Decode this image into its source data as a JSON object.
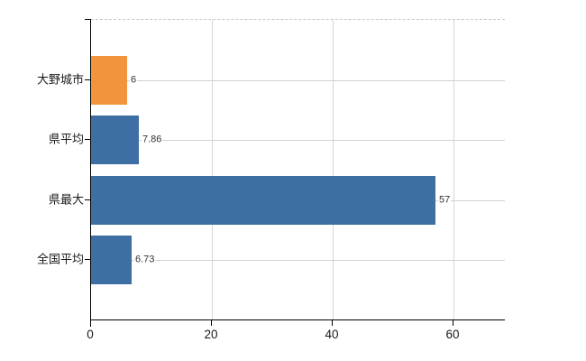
{
  "chart_data": {
    "type": "bar",
    "orientation": "horizontal",
    "title": "",
    "xlabel": "",
    "ylabel": "",
    "categories": [
      "大野城市",
      "県平均",
      "県最大",
      "全国平均"
    ],
    "values": [
      6,
      7.86,
      57,
      6.73
    ],
    "value_labels": [
      "6",
      "7.86",
      "57",
      "6.73"
    ],
    "bar_colors": [
      "#f0953e",
      "#3d6ea4",
      "#3d6ea4",
      "#3d6ea4"
    ],
    "highlight_category": "大野城市",
    "x_tick_labels": [
      "0",
      "20",
      "40",
      "60"
    ],
    "x_tick_values": [
      0,
      20,
      40,
      60
    ],
    "xlim": [
      0,
      68.5
    ],
    "grid": true,
    "legend": false,
    "colors": {
      "bar_default": "#3d6ea4",
      "bar_highlight": "#f0953e",
      "grid_horizontal": "#ccd4cc",
      "grid_vertical": "#d7d7db",
      "plot_border_dashed": "#c6c6c6",
      "axis": "#000000",
      "category_text": "#1a1a1a",
      "tick_text": "#1a1a1a",
      "value_text": "#333333",
      "background": "#ffffff"
    }
  }
}
